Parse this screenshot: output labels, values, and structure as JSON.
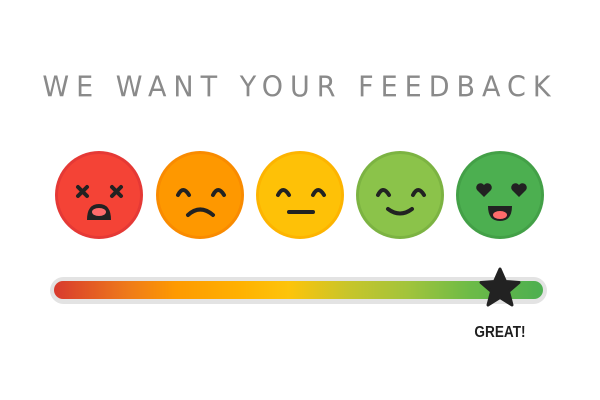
{
  "title": "WE WANT YOUR FEEDBACK",
  "faces": [
    {
      "mood": "dead",
      "color": "#f44336",
      "border": "#e53935"
    },
    {
      "mood": "sad",
      "color": "#fe9800",
      "border": "#f98b00"
    },
    {
      "mood": "neutral",
      "color": "#fec107",
      "border": "#fdb400"
    },
    {
      "mood": "smile",
      "color": "#8bc34a",
      "border": "#7cb342"
    },
    {
      "mood": "love",
      "color": "#4caf50",
      "border": "#43a047"
    }
  ],
  "slider": {
    "value": 0.91,
    "handle_icon": "star-icon",
    "label": "GREAT!"
  }
}
